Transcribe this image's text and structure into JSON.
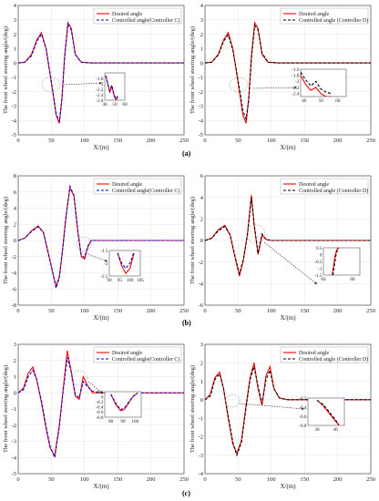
{
  "figure": {
    "row_labels": [
      "(a)",
      "(b)",
      "(c)"
    ]
  },
  "chart_data": [
    {
      "id": "a-left",
      "type": "line",
      "xlabel": "X/(m)",
      "ylabel": "The front wheel steering angle/(deg)",
      "xlim": [
        0,
        250
      ],
      "ylim": [
        -5,
        4
      ],
      "xticks": [
        0,
        50,
        100,
        150,
        200,
        250
      ],
      "yticks": [
        -5,
        -4,
        -3,
        -2,
        -1,
        0,
        1,
        2,
        3,
        4
      ],
      "grid": true,
      "legend_position": "top-right",
      "series": [
        {
          "name": "Desired angle",
          "color": "#ff0000",
          "style": "solid",
          "x": [
            0,
            10,
            20,
            28,
            35,
            42,
            48,
            53,
            57,
            62,
            66,
            70,
            75,
            80,
            86,
            95,
            110,
            130,
            250
          ],
          "y": [
            0,
            0.05,
            0.6,
            1.6,
            2.1,
            1.0,
            -0.8,
            -2.3,
            -3.6,
            -4.2,
            -2.4,
            0.5,
            2.8,
            2.4,
            0.6,
            0.05,
            0,
            0,
            0
          ]
        },
        {
          "name": "Controlled angle(Controller C)",
          "color": "#0000cc",
          "style": "dashed",
          "x": [
            0,
            10,
            20,
            28,
            35,
            42,
            48,
            53,
            57,
            62,
            66,
            70,
            75,
            80,
            86,
            95,
            110,
            130,
            250
          ],
          "y": [
            0,
            0.05,
            0.5,
            1.5,
            2.0,
            1.0,
            -0.7,
            -2.2,
            -3.5,
            -4.1,
            -2.5,
            0.4,
            2.7,
            2.3,
            0.6,
            0.05,
            0,
            0,
            0
          ]
        }
      ],
      "inset": {
        "xlim": [
          40,
          60
        ],
        "ylim": [
          -2.6,
          -1.6
        ],
        "xticks": [
          40,
          50,
          60
        ],
        "yticks": [
          -1.8,
          -2,
          -2.2,
          -2.4,
          -2.6
        ],
        "series": [
          {
            "x": [
              41,
              43,
              45,
              47,
              49,
              51,
              53
            ],
            "y": [
              -1.7,
              -2.0,
              -2.3,
              -2.1,
              -2.4,
              -2.6,
              -2.5
            ]
          },
          {
            "x": [
              41,
              43,
              45,
              47,
              49,
              51,
              53
            ],
            "y": [
              -1.7,
              -2.0,
              -2.25,
              -2.05,
              -2.35,
              -2.55,
              -2.45
            ]
          }
        ]
      }
    },
    {
      "id": "a-right",
      "type": "line",
      "xlabel": "X/(m)",
      "ylabel": "The front wheel steering angle/(deg)",
      "xlim": [
        0,
        250
      ],
      "ylim": [
        -5,
        4
      ],
      "xticks": [
        0,
        50,
        100,
        150,
        200,
        250
      ],
      "yticks": [
        -5,
        -4,
        -3,
        -2,
        -1,
        0,
        1,
        2,
        3,
        4
      ],
      "grid": true,
      "legend_position": "top-right",
      "series": [
        {
          "name": "Desired angle",
          "color": "#ff0000",
          "style": "solid",
          "x": [
            0,
            10,
            20,
            28,
            35,
            42,
            48,
            53,
            57,
            62,
            66,
            70,
            75,
            80,
            86,
            95,
            110,
            130,
            250
          ],
          "y": [
            0,
            0.05,
            0.6,
            1.6,
            2.1,
            1.0,
            -0.8,
            -2.3,
            -3.6,
            -4.2,
            -2.4,
            0.5,
            2.8,
            2.4,
            0.6,
            0.05,
            0,
            0,
            0
          ]
        },
        {
          "name": "Controlled angle (Controller D)",
          "color": "#000000",
          "style": "dashed",
          "x": [
            0,
            10,
            20,
            28,
            35,
            42,
            48,
            53,
            57,
            62,
            66,
            70,
            75,
            80,
            86,
            95,
            110,
            130,
            250
          ],
          "y": [
            0,
            0.05,
            0.55,
            1.5,
            1.95,
            0.9,
            -0.7,
            -2.1,
            -3.3,
            -3.9,
            -2.6,
            0.3,
            2.6,
            2.3,
            0.7,
            0.05,
            0,
            0,
            0
          ]
        }
      ],
      "inset": {
        "xlim": [
          38,
          65
        ],
        "ylim": [
          -2.5,
          -1.6
        ],
        "xticks": [
          40,
          50,
          60
        ],
        "yticks": [
          -1.6,
          -1.8,
          -2,
          -2.2,
          -2.4
        ],
        "series": [
          {
            "x": [
              38,
              41,
              44,
              47,
              50,
              53,
              56
            ],
            "y": [
              -1.8,
              -2.1,
              -2.3,
              -2.2,
              -2.4,
              -2.5,
              -2.5
            ]
          },
          {
            "x": [
              38,
              41,
              44,
              47,
              50,
              53,
              56
            ],
            "y": [
              -1.7,
              -1.95,
              -2.15,
              -2.0,
              -2.25,
              -2.35,
              -2.4
            ]
          }
        ]
      }
    },
    {
      "id": "b-left",
      "type": "line",
      "xlabel": "X/(m)",
      "ylabel": "The front wheel steering angle/(deg)",
      "xlim": [
        0,
        250
      ],
      "ylim": [
        -8,
        8
      ],
      "xticks": [
        0,
        50,
        100,
        150,
        200,
        250
      ],
      "yticks": [
        -8,
        -6,
        -4,
        -2,
        0,
        2,
        4,
        6,
        8
      ],
      "grid": true,
      "legend_position": "top-right",
      "series": [
        {
          "name": "Desired angle",
          "color": "#ff0000",
          "style": "solid",
          "x": [
            0,
            10,
            20,
            30,
            38,
            45,
            52,
            57,
            62,
            67,
            72,
            78,
            84,
            90,
            95,
            100,
            105,
            110,
            120,
            250
          ],
          "y": [
            0,
            0.3,
            1.2,
            1.8,
            1.0,
            -1.5,
            -4.0,
            -5.6,
            -4.5,
            -1.0,
            3.0,
            6.5,
            5.5,
            1.0,
            -2.0,
            -2.3,
            -0.8,
            0,
            0,
            0
          ]
        },
        {
          "name": "Controlled angle(Controller C)",
          "color": "#0000cc",
          "style": "dashed",
          "x": [
            0,
            10,
            20,
            30,
            38,
            45,
            52,
            57,
            62,
            67,
            72,
            78,
            84,
            90,
            95,
            100,
            105,
            110,
            120,
            250
          ],
          "y": [
            0,
            0.3,
            1.1,
            1.7,
            1.0,
            -1.4,
            -3.9,
            -5.9,
            -4.6,
            -1.1,
            2.9,
            6.7,
            5.6,
            1.1,
            -1.8,
            -2.1,
            -0.7,
            0,
            0,
            0
          ]
        }
      ],
      "inset": {
        "xlim": [
          90,
          105
        ],
        "ylim": [
          -2.5,
          -1.5
        ],
        "xticks": [
          90,
          95,
          100,
          105
        ],
        "yticks": [
          -1.5,
          -2,
          -2.5
        ],
        "series": [
          {
            "x": [
              94,
              96,
              98,
              100,
              102
            ],
            "y": [
              -1.6,
              -2.1,
              -2.4,
              -2.2,
              -1.6
            ]
          },
          {
            "x": [
              94,
              96,
              98,
              100,
              102
            ],
            "y": [
              -1.6,
              -2.0,
              -2.2,
              -2.0,
              -1.55
            ]
          }
        ]
      }
    },
    {
      "id": "b-right",
      "type": "line",
      "xlabel": "X/(m)",
      "ylabel": "The front wheel steering angle/(deg)",
      "xlim": [
        0,
        250
      ],
      "ylim": [
        -6,
        6
      ],
      "xticks": [
        0,
        50,
        100,
        150,
        200,
        250
      ],
      "yticks": [
        -6,
        -4,
        -2,
        0,
        2,
        4,
        6
      ],
      "grid": true,
      "legend_position": "top-right",
      "series": [
        {
          "name": "Desired angle",
          "color": "#ff0000",
          "style": "solid",
          "x": [
            0,
            10,
            20,
            30,
            38,
            45,
            52,
            58,
            64,
            70,
            74,
            80,
            86,
            92,
            100,
            110,
            250
          ],
          "y": [
            0,
            0.2,
            1.0,
            1.4,
            0.5,
            -1.5,
            -3.3,
            -1.8,
            0.6,
            4.2,
            1.5,
            -1.3,
            0.5,
            0.1,
            0,
            0,
            0
          ]
        },
        {
          "name": "Controlled angle (Controller D)",
          "color": "#000000",
          "style": "dashed",
          "x": [
            0,
            10,
            20,
            30,
            38,
            45,
            52,
            58,
            64,
            70,
            74,
            80,
            86,
            92,
            100,
            110,
            250
          ],
          "y": [
            0,
            0.2,
            0.9,
            1.3,
            0.5,
            -1.4,
            -3.1,
            -1.7,
            0.5,
            4.0,
            1.6,
            -1.2,
            0.6,
            0.1,
            0,
            0,
            0
          ]
        }
      ],
      "inset": {
        "xlim": [
          60,
          85
        ],
        "ylim": [
          -1.5,
          0.5
        ],
        "xticks": [
          60,
          80
        ],
        "yticks": [
          0.5,
          0,
          -0.5,
          -1,
          -1.5
        ],
        "series": [
          {
            "x": [
              66,
              67,
              68,
              69,
              70
            ],
            "y": [
              -1.5,
              -0.8,
              -0.1,
              0.3,
              0.5
            ]
          },
          {
            "x": [
              66.5,
              67.5,
              68.5,
              69.5,
              70.5
            ],
            "y": [
              -1.5,
              -0.8,
              -0.1,
              0.3,
              0.5
            ]
          }
        ]
      }
    },
    {
      "id": "c-left",
      "type": "line",
      "xlabel": "X/(m)",
      "ylabel": "The front wheel steering angle/(deg)",
      "xlim": [
        0,
        250
      ],
      "ylim": [
        -5,
        3
      ],
      "xticks": [
        0,
        50,
        100,
        150,
        200,
        250
      ],
      "yticks": [
        -5,
        -4,
        -3,
        -2,
        -1,
        0,
        1,
        2,
        3
      ],
      "grid": true,
      "legend_position": "top-right",
      "series": [
        {
          "name": "Desired angle",
          "color": "#ff0000",
          "style": "solid",
          "x": [
            0,
            8,
            15,
            22,
            28,
            35,
            42,
            48,
            55,
            62,
            68,
            74,
            80,
            86,
            92,
            98,
            104,
            112,
            125,
            250
          ],
          "y": [
            0,
            0.3,
            1.2,
            1.6,
            0.8,
            -0.6,
            -2.2,
            -3.4,
            -3.9,
            -2.0,
            0.3,
            2.6,
            1.3,
            -0.2,
            -0.4,
            1.0,
            0.5,
            0,
            0,
            0
          ]
        },
        {
          "name": "Controlled angle(Controller C)",
          "color": "#0000cc",
          "style": "dashed",
          "x": [
            0,
            8,
            15,
            22,
            28,
            35,
            42,
            48,
            55,
            62,
            68,
            74,
            80,
            86,
            92,
            98,
            104,
            112,
            125,
            250
          ],
          "y": [
            0,
            0.2,
            1.0,
            1.4,
            0.8,
            -0.5,
            -2.1,
            -3.3,
            -4.0,
            -2.1,
            0.2,
            2.2,
            1.3,
            -0.1,
            -0.3,
            0.7,
            0.4,
            0.1,
            0,
            0
          ]
        }
      ],
      "inset": {
        "xlim": [
          75,
          105
        ],
        "ylim": [
          -0.8,
          0.2
        ],
        "xticks": [
          80,
          90,
          100
        ],
        "yticks": [
          0.2,
          0,
          -0.2,
          -0.4,
          -0.6,
          -0.8
        ],
        "series": [
          {
            "x": [
              80,
              84,
              88,
              91,
              94,
              98,
              102
            ],
            "y": [
              0.1,
              -0.3,
              -0.55,
              -0.5,
              -0.3,
              0,
              0.15
            ]
          },
          {
            "x": [
              80,
              84,
              88,
              91,
              94,
              98,
              102
            ],
            "y": [
              0.1,
              -0.25,
              -0.5,
              -0.45,
              -0.25,
              0,
              0.15
            ]
          }
        ]
      }
    },
    {
      "id": "c-right",
      "type": "line",
      "xlabel": "X/(m)",
      "ylabel": "The front wheel steering angle/(deg)",
      "xlim": [
        0,
        250
      ],
      "ylim": [
        -4,
        3
      ],
      "xticks": [
        0,
        50,
        100,
        150,
        200,
        250
      ],
      "yticks": [
        -4,
        -3,
        -2,
        -1,
        0,
        1,
        2,
        3
      ],
      "grid": true,
      "legend_position": "top-right",
      "series": [
        {
          "name": "Desired angle",
          "color": "#ff0000",
          "style": "solid",
          "x": [
            0,
            8,
            15,
            22,
            28,
            35,
            42,
            48,
            55,
            62,
            68,
            74,
            80,
            86,
            92,
            98,
            104,
            112,
            125,
            250
          ],
          "y": [
            0,
            0.3,
            1.2,
            1.5,
            0.6,
            -1.0,
            -2.4,
            -2.9,
            -2.2,
            -0.3,
            1.2,
            2.0,
            0.6,
            -0.3,
            1.3,
            1.8,
            0.6,
            0.1,
            0,
            0
          ]
        },
        {
          "name": "Controlled angle (Controller D)",
          "color": "#000000",
          "style": "dashed",
          "x": [
            0,
            8,
            15,
            22,
            28,
            35,
            42,
            48,
            55,
            62,
            68,
            74,
            80,
            86,
            92,
            98,
            104,
            112,
            125,
            250
          ],
          "y": [
            0,
            0.2,
            1.1,
            1.4,
            0.6,
            -0.9,
            -2.3,
            -3.0,
            -2.3,
            -0.4,
            1.1,
            1.8,
            0.7,
            -0.2,
            1.1,
            1.6,
            0.6,
            0.1,
            0,
            0
          ]
        }
      ],
      "inset": {
        "xlim": [
          25,
          45
        ],
        "ylim": [
          -0.8,
          -0.2
        ],
        "xticks": [
          30,
          40
        ],
        "yticks": [
          -0.2,
          -0.4,
          -0.6,
          -0.8
        ],
        "series": [
          {
            "x": [
              30,
              33,
              36,
              39,
              42
            ],
            "y": [
              -0.25,
              -0.35,
              -0.5,
              -0.65,
              -0.8
            ]
          },
          {
            "x": [
              30,
              33,
              36,
              39,
              42
            ],
            "y": [
              -0.25,
              -0.33,
              -0.47,
              -0.62,
              -0.78
            ]
          }
        ]
      }
    }
  ]
}
